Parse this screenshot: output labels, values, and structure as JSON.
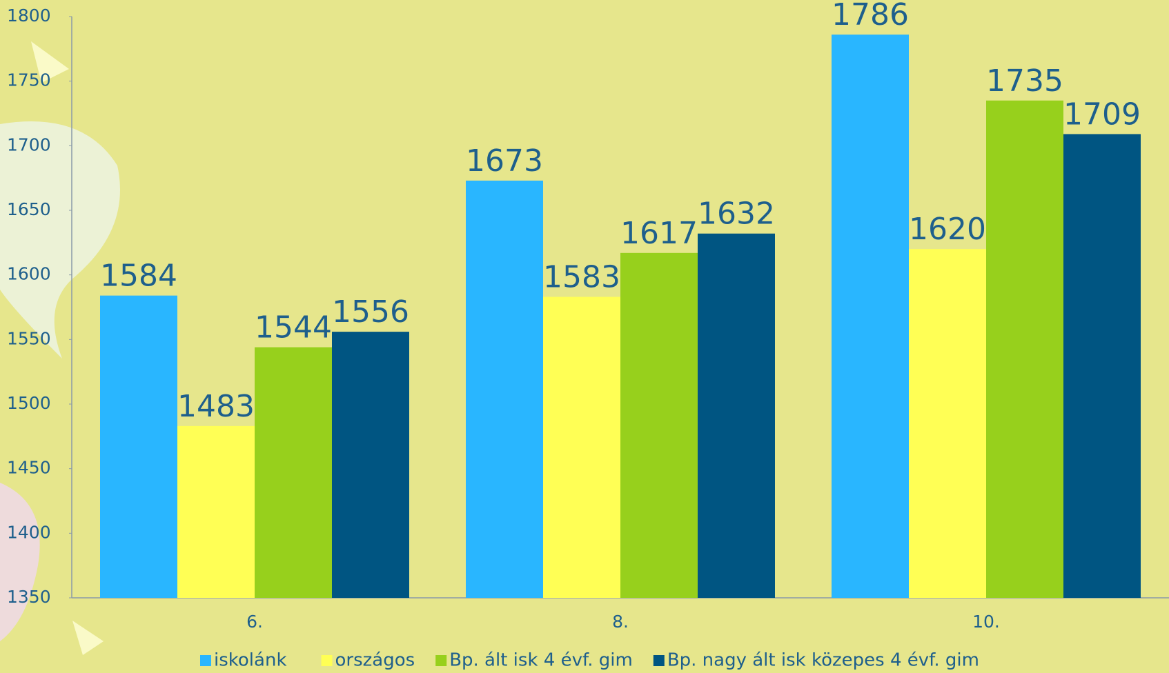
{
  "chart_data": {
    "type": "bar",
    "categories": [
      "6.",
      "8.",
      "10."
    ],
    "series": [
      {
        "name": "iskolánk",
        "color": "#29b6ff",
        "values": [
          1584,
          1673,
          1786
        ]
      },
      {
        "name": "országos",
        "color": "#ffff55",
        "values": [
          1483,
          1583,
          1620
        ]
      },
      {
        "name": "Bp. ált isk 4 évf. gim",
        "color": "#97d01c",
        "values": [
          1544,
          1617,
          1735
        ]
      },
      {
        "name": "Bp. nagy ált isk közepes 4 évf. gim",
        "color": "#005582",
        "values": [
          1556,
          1632,
          1709
        ]
      }
    ],
    "ylim": [
      1350,
      1800
    ],
    "yticks": [
      1350,
      1400,
      1450,
      1500,
      1550,
      1600,
      1650,
      1700,
      1750,
      1800
    ],
    "grid": false,
    "legend": "bottom"
  }
}
